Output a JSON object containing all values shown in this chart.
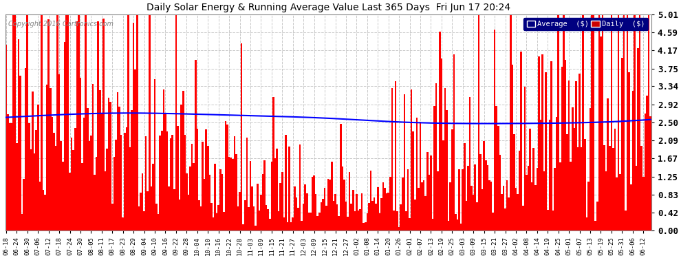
{
  "title": "Daily Solar Energy & Running Average Value Last 365 Days  Fri Jun 17 20:24",
  "copyright": "Copyright 2016 Cartronics.com",
  "ylabel_ticks": [
    0.0,
    0.42,
    0.83,
    1.25,
    1.67,
    2.09,
    2.5,
    2.92,
    3.34,
    3.75,
    4.17,
    4.59,
    5.01
  ],
  "ymax": 5.01,
  "ymin": 0.0,
  "bar_color": "#FF0000",
  "avg_color": "#0000FF",
  "bg_color": "#FFFFFF",
  "plot_bg_color": "#FFFFFF",
  "grid_color": "#BBBBBB",
  "legend_avg_bg": "#000080",
  "legend_daily_bg": "#CC0000",
  "n_days": 365,
  "x_tick_labels": [
    "06-18",
    "06-24",
    "06-30",
    "07-06",
    "07-12",
    "07-18",
    "07-24",
    "07-30",
    "08-05",
    "08-11",
    "08-17",
    "08-23",
    "08-29",
    "09-04",
    "09-10",
    "09-16",
    "09-22",
    "09-28",
    "10-04",
    "10-10",
    "10-16",
    "10-22",
    "10-28",
    "11-03",
    "11-09",
    "11-15",
    "11-21",
    "11-27",
    "12-03",
    "12-09",
    "12-15",
    "12-21",
    "12-27",
    "01-02",
    "01-08",
    "01-14",
    "01-20",
    "01-26",
    "02-01",
    "02-07",
    "02-13",
    "02-19",
    "02-25",
    "03-03",
    "03-09",
    "03-15",
    "03-21",
    "03-27",
    "04-02",
    "04-08",
    "04-14",
    "04-19",
    "04-25",
    "05-01",
    "05-07",
    "05-13",
    "05-19",
    "05-25",
    "05-31",
    "06-06",
    "06-12"
  ],
  "avg_curve_x": [
    0,
    0.08,
    0.18,
    0.28,
    0.38,
    0.5,
    0.6,
    0.7,
    0.8,
    0.9,
    1.0
  ],
  "avg_curve_y": [
    2.62,
    2.68,
    2.72,
    2.7,
    2.66,
    2.6,
    2.52,
    2.48,
    2.48,
    2.5,
    2.57
  ]
}
